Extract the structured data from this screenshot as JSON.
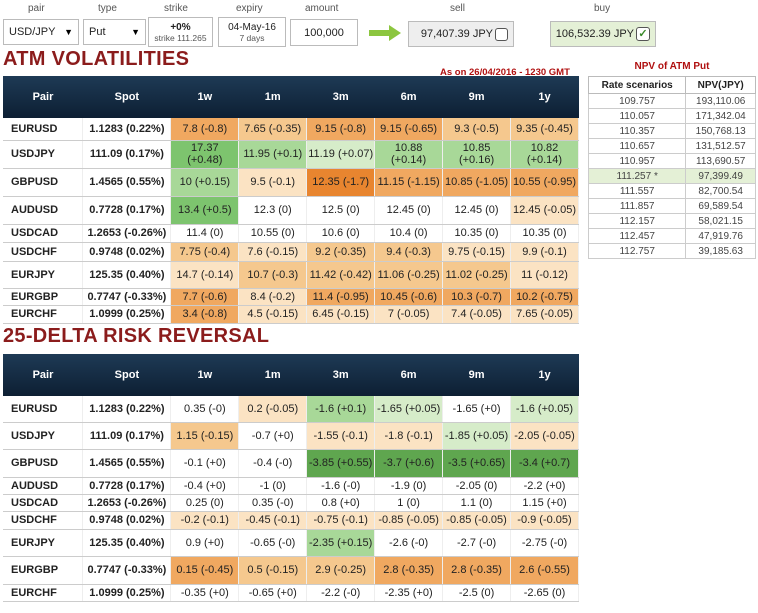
{
  "controls": {
    "pair": {
      "label": "pair",
      "value": "USD/JPY"
    },
    "type": {
      "label": "type",
      "value": "Put"
    },
    "strike": {
      "label": "strike",
      "value": "+0%",
      "sub": "strike 111.265"
    },
    "expiry": {
      "label": "expiry",
      "value": "04-May-16",
      "sub": "7 days"
    },
    "amount": {
      "label": "amount",
      "value": "100,000"
    },
    "sell": {
      "label": "sell",
      "value": "97,407.39 JPY"
    },
    "buy": {
      "label": "buy",
      "value": "106,532.39 JPY"
    }
  },
  "atm": {
    "title": "ATM VOLATILITIES",
    "as_on": "As on 26/04/2016 - 1230 GMT",
    "headers": [
      "Pair",
      "Spot",
      "1w",
      "1m",
      "3m",
      "6m",
      "9m",
      "1y"
    ],
    "rows": [
      {
        "pair": "EURUSD",
        "spot": "1.1283 (0.22%)",
        "cells": [
          "7.8 (-0.8)",
          "7.65 (-0.35)",
          "9.15 (-0.8)",
          "9.15 (-0.65)",
          "9.3 (-0.5)",
          "9.35 (-0.45)"
        ],
        "colors": [
          "#f0a860",
          "#f5c88e",
          "#f0a860",
          "#f0a860",
          "#f5c88e",
          "#f5c88e"
        ]
      },
      {
        "pair": "USDJPY",
        "spot": "111.09 (0.17%)",
        "cells": [
          "17.37 (+0.48)",
          "11.95 (+0.1)",
          "11.19 (+0.07)",
          "10.88 (+0.14)",
          "10.85 (+0.16)",
          "10.82 (+0.14)"
        ],
        "colors": [
          "#7dc46e",
          "#a8d898",
          "#d6ecc9",
          "#a8d898",
          "#a8d898",
          "#a8d898"
        ]
      },
      {
        "pair": "GBPUSD",
        "spot": "1.4565 (0.55%)",
        "cells": [
          "10 (+0.15)",
          "9.5 (-0.1)",
          "12.35 (-1.7)",
          "11.15 (-1.15)",
          "10.85 (-1.05)",
          "10.55 (-0.95)"
        ],
        "colors": [
          "#a8d898",
          "#fbe3c3",
          "#e8852f",
          "#f0a860",
          "#f0a860",
          "#f0a860"
        ]
      },
      {
        "pair": "AUDUSD",
        "spot": "0.7728 (0.17%)",
        "cells": [
          "13.4 (+0.5)",
          "12.3 (0)",
          "12.5 (0)",
          "12.45 (0)",
          "12.45 (0)",
          "12.45 (-0.05)"
        ],
        "colors": [
          "#7dc46e",
          "#ffffff",
          "#ffffff",
          "#ffffff",
          "#ffffff",
          "#fbe3c3"
        ]
      },
      {
        "pair": "USDCAD",
        "spot": "1.2653 (-0.26%)",
        "cells": [
          "11.4 (0)",
          "10.55 (0)",
          "10.6 (0)",
          "10.4 (0)",
          "10.35 (0)",
          "10.35 (0)"
        ],
        "colors": [
          "#ffffff",
          "#ffffff",
          "#ffffff",
          "#ffffff",
          "#ffffff",
          "#ffffff"
        ]
      },
      {
        "pair": "USDCHF",
        "spot": "0.9748 (0.02%)",
        "cells": [
          "7.75 (-0.4)",
          "7.6 (-0.15)",
          "9.2 (-0.35)",
          "9.4 (-0.3)",
          "9.75 (-0.15)",
          "9.9 (-0.1)"
        ],
        "colors": [
          "#f5c88e",
          "#fbe3c3",
          "#f5c88e",
          "#f5c88e",
          "#fbe3c3",
          "#fbe3c3"
        ]
      },
      {
        "pair": "EURJPY",
        "spot": "125.35 (0.40%)",
        "cells": [
          "14.7 (-0.14)",
          "10.7 (-0.3)",
          "11.42 (-0.42)",
          "11.06 (-0.25)",
          "11.02 (-0.25)",
          "11 (-0.12)"
        ],
        "colors": [
          "#fbe3c3",
          "#f5c88e",
          "#f5c88e",
          "#f5c88e",
          "#f5c88e",
          "#fbe3c3"
        ]
      },
      {
        "pair": "EURGBP",
        "spot": "0.7747 (-0.33%)",
        "cells": [
          "7.7 (-0.6)",
          "8.4 (-0.2)",
          "11.4 (-0.95)",
          "10.45 (-0.6)",
          "10.3 (-0.7)",
          "10.2 (-0.75)"
        ],
        "colors": [
          "#f0a860",
          "#fbe3c3",
          "#f0a860",
          "#f0a860",
          "#f0a860",
          "#f0a860"
        ]
      },
      {
        "pair": "EURCHF",
        "spot": "1.0999 (0.25%)",
        "cells": [
          "3.4 (-0.8)",
          "4.5 (-0.15)",
          "6.45 (-0.15)",
          "7 (-0.05)",
          "7.4 (-0.05)",
          "7.65 (-0.05)"
        ],
        "colors": [
          "#f0a860",
          "#fbe3c3",
          "#fbe3c3",
          "#fbe3c3",
          "#fbe3c3",
          "#fbe3c3"
        ]
      }
    ]
  },
  "rr": {
    "title": "25-DELTA RISK REVERSAL",
    "headers": [
      "Pair",
      "Spot",
      "1w",
      "1m",
      "3m",
      "6m",
      "9m",
      "1y"
    ],
    "rows": [
      {
        "pair": "EURUSD",
        "spot": "1.1283 (0.22%)",
        "cells": [
          "0.35 (-0)",
          "0.2 (-0.05)",
          "-1.6 (+0.1)",
          "-1.65 (+0.05)",
          "-1.65 (+0)",
          "-1.6 (+0.05)"
        ],
        "colors": [
          "#ffffff",
          "#fbe3c3",
          "#a8d898",
          "#d6ecc9",
          "#ffffff",
          "#d6ecc9"
        ]
      },
      {
        "pair": "USDJPY",
        "spot": "111.09 (0.17%)",
        "cells": [
          "1.15 (-0.15)",
          "-0.7 (+0)",
          "-1.55 (-0.1)",
          "-1.8 (-0.1)",
          "-1.85 (+0.05)",
          "-2.05 (-0.05)"
        ],
        "colors": [
          "#f5c88e",
          "#ffffff",
          "#fbe3c3",
          "#fbe3c3",
          "#d6ecc9",
          "#fbe3c3"
        ]
      },
      {
        "pair": "GBPUSD",
        "spot": "1.4565 (0.55%)",
        "cells": [
          "-0.1 (+0)",
          "-0.4 (-0)",
          "-3.85 (+0.55)",
          "-3.7 (+0.6)",
          "-3.5 (+0.65)",
          "-3.4 (+0.7)"
        ],
        "colors": [
          "#ffffff",
          "#ffffff",
          "#5fa64f",
          "#5fa64f",
          "#5fa64f",
          "#5fa64f"
        ]
      },
      {
        "pair": "AUDUSD",
        "spot": "0.7728 (0.17%)",
        "cells": [
          "-0.4 (+0)",
          "-1 (0)",
          "-1.6 (-0)",
          "-1.9 (0)",
          "-2.05 (0)",
          "-2.2 (+0)"
        ],
        "colors": [
          "#ffffff",
          "#ffffff",
          "#ffffff",
          "#ffffff",
          "#ffffff",
          "#ffffff"
        ]
      },
      {
        "pair": "USDCAD",
        "spot": "1.2653 (-0.26%)",
        "cells": [
          "0.25 (0)",
          "0.35 (-0)",
          "0.8 (+0)",
          "1 (0)",
          "1.1 (0)",
          "1.15 (+0)"
        ],
        "colors": [
          "#ffffff",
          "#ffffff",
          "#ffffff",
          "#ffffff",
          "#ffffff",
          "#ffffff"
        ]
      },
      {
        "pair": "USDCHF",
        "spot": "0.9748 (0.02%)",
        "cells": [
          "-0.2 (-0.1)",
          "-0.45 (-0.1)",
          "-0.75 (-0.1)",
          "-0.85 (-0.05)",
          "-0.85 (-0.05)",
          "-0.9 (-0.05)"
        ],
        "colors": [
          "#fbe3c3",
          "#fbe3c3",
          "#fbe3c3",
          "#fbe3c3",
          "#fbe3c3",
          "#fbe3c3"
        ]
      },
      {
        "pair": "EURJPY",
        "spot": "125.35 (0.40%)",
        "cells": [
          "0.9 (+0)",
          "-0.65 (-0)",
          "-2.35 (+0.15)",
          "-2.6 (-0)",
          "-2.7 (-0)",
          "-2.75 (-0)"
        ],
        "colors": [
          "#ffffff",
          "#ffffff",
          "#a8d898",
          "#ffffff",
          "#ffffff",
          "#ffffff"
        ]
      },
      {
        "pair": "EURGBP",
        "spot": "0.7747 (-0.33%)",
        "cells": [
          "0.15 (-0.45)",
          "0.5 (-0.15)",
          "2.9 (-0.25)",
          "2.8 (-0.35)",
          "2.8 (-0.35)",
          "2.6 (-0.55)"
        ],
        "colors": [
          "#f0a860",
          "#f5c88e",
          "#f5c88e",
          "#f0a860",
          "#f0a860",
          "#f0a860"
        ]
      },
      {
        "pair": "EURCHF",
        "spot": "1.0999 (0.25%)",
        "cells": [
          "-0.35 (+0)",
          "-0.65 (+0)",
          "-2.2 (-0)",
          "-2.35 (+0)",
          "-2.5 (0)",
          "-2.65 (0)"
        ],
        "colors": [
          "#ffffff",
          "#ffffff",
          "#ffffff",
          "#ffffff",
          "#ffffff",
          "#ffffff"
        ]
      }
    ]
  },
  "npv": {
    "title": "NPV of ATM Put",
    "headers": [
      "Rate scenarios",
      "NPV(JPY)"
    ],
    "rows": [
      {
        "rate": "109.757",
        "npv": "193,110.06"
      },
      {
        "rate": "110.057",
        "npv": "171,342.04"
      },
      {
        "rate": "110.357",
        "npv": "150,768.13"
      },
      {
        "rate": "110.657",
        "npv": "131,512.57"
      },
      {
        "rate": "110.957",
        "npv": "113,690.57"
      },
      {
        "rate": "111.257 *",
        "npv": "97,399.49",
        "highlight": true
      },
      {
        "rate": "111.557",
        "npv": "82,700.54"
      },
      {
        "rate": "111.857",
        "npv": "69,589.54"
      },
      {
        "rate": "112.157",
        "npv": "58,021.15"
      },
      {
        "rate": "112.457",
        "npv": "47,919.76"
      },
      {
        "rate": "112.757",
        "npv": "39,185.63"
      }
    ]
  }
}
